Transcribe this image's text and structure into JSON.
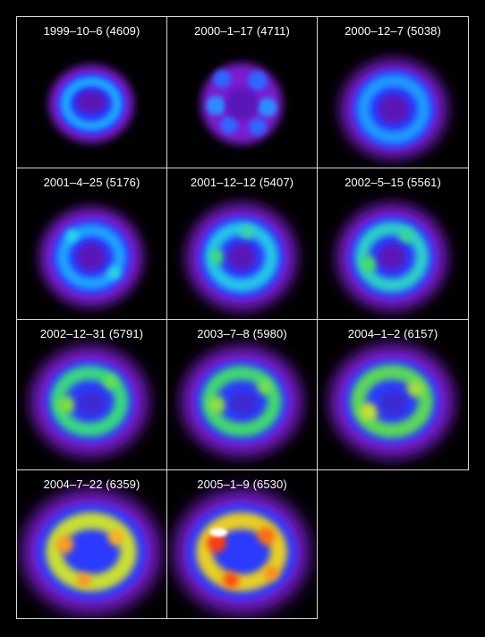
{
  "panels": [
    {
      "label": "1999–10–6 (4609)"
    },
    {
      "label": "2000–1–17 (4711)"
    },
    {
      "label": "2000–12–7 (5038)"
    },
    {
      "label": "2001–4–25 (5176)"
    },
    {
      "label": "2001–12–12 (5407)"
    },
    {
      "label": "2002–5–15 (5561)"
    },
    {
      "label": "2002–12–31 (5791)"
    },
    {
      "label": "2003–7–8 (5980)"
    },
    {
      "label": "2004–1–2 (6157)"
    },
    {
      "label": "2004–7–22 (6359)"
    },
    {
      "label": "2005–1–9 (6530)"
    }
  ]
}
